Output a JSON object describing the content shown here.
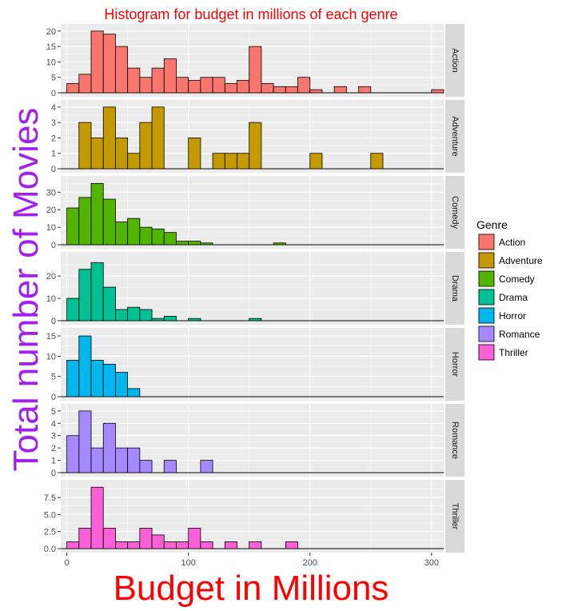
{
  "chart_data": {
    "type": "bar",
    "title": "Histogram for budget in millions of each genre",
    "xlabel": "Budget in Millions",
    "ylabel": "Total number of Movies",
    "title_color": "#FF0000",
    "xlabel_color": "#FF0000",
    "ylabel_color": "#A020F0",
    "binwidth": 10,
    "xlim": [
      -5,
      310
    ],
    "x_ticks": [
      0,
      100,
      200,
      300
    ],
    "x_tick_labels": [
      "0",
      "100",
      "200",
      "300"
    ],
    "grid": true,
    "legend": {
      "title": "Genre",
      "position": "right",
      "entries": [
        "Action",
        "Adventure",
        "Comedy",
        "Drama",
        "Horror",
        "Romance",
        "Thriller"
      ]
    },
    "bins_start": [
      0,
      10,
      20,
      30,
      40,
      50,
      60,
      70,
      80,
      90,
      100,
      110,
      120,
      130,
      140,
      150,
      160,
      170,
      180,
      190,
      200,
      210,
      220,
      230,
      240,
      250,
      260,
      270,
      280,
      290,
      300
    ],
    "series": [
      {
        "name": "Action",
        "color": "#F8766D",
        "ylim": [
          0,
          21
        ],
        "y_ticks": [
          0,
          5,
          10,
          15,
          20
        ],
        "y_tick_labels": [
          "0",
          "5",
          "10",
          "15",
          "20"
        ],
        "values": [
          3,
          6,
          20,
          19,
          15,
          8,
          5,
          8,
          11,
          5,
          4,
          5,
          5,
          3,
          4,
          15,
          3,
          2,
          2,
          5,
          1,
          0,
          2,
          0,
          2,
          0,
          0,
          0,
          0,
          0,
          1
        ]
      },
      {
        "name": "Adventure",
        "color": "#C49A00",
        "ylim": [
          0,
          4.2
        ],
        "y_ticks": [
          0,
          1,
          2,
          3,
          4
        ],
        "y_tick_labels": [
          "0",
          "1",
          "2",
          "3",
          "4"
        ],
        "values": [
          0,
          3,
          2,
          4,
          2,
          1,
          3,
          4,
          0,
          0,
          2,
          0,
          1,
          1,
          1,
          3,
          0,
          0,
          0,
          0,
          1,
          0,
          0,
          0,
          0,
          1,
          0,
          0,
          0,
          0,
          0
        ]
      },
      {
        "name": "Comedy",
        "color": "#53B400",
        "ylim": [
          0,
          37
        ],
        "y_ticks": [
          0,
          10,
          20,
          30
        ],
        "y_tick_labels": [
          "0",
          "10",
          "20",
          "30"
        ],
        "values": [
          21,
          27,
          35,
          26,
          13,
          15,
          10,
          9,
          7,
          2,
          2,
          1,
          0,
          0,
          0,
          0,
          0,
          1,
          0,
          0,
          0,
          0,
          0,
          0,
          0,
          0,
          0,
          0,
          0,
          0,
          0
        ]
      },
      {
        "name": "Drama",
        "color": "#00C094",
        "ylim": [
          0,
          29
        ],
        "y_ticks": [
          0,
          10,
          20
        ],
        "y_tick_labels": [
          "0",
          "10",
          "20"
        ],
        "values": [
          10,
          23,
          26,
          15,
          5,
          6,
          5,
          1,
          2,
          0,
          1,
          0,
          0,
          0,
          0,
          1,
          0,
          0,
          0,
          0,
          0,
          0,
          0,
          0,
          0,
          0,
          0,
          0,
          0,
          0,
          0
        ]
      },
      {
        "name": "Horror",
        "color": "#00B6EB",
        "ylim": [
          0,
          16
        ],
        "y_ticks": [
          0,
          5,
          10,
          15
        ],
        "y_tick_labels": [
          "0",
          "5",
          "10",
          "15"
        ],
        "values": [
          9,
          15,
          9,
          8,
          6,
          2,
          0,
          0,
          0,
          0,
          0,
          0,
          0,
          0,
          0,
          0,
          0,
          0,
          0,
          0,
          0,
          0,
          0,
          0,
          0,
          0,
          0,
          0,
          0,
          0,
          0
        ]
      },
      {
        "name": "Romance",
        "color": "#A58AFF",
        "ylim": [
          0,
          5.25
        ],
        "y_ticks": [
          0,
          1,
          2,
          3,
          4,
          5
        ],
        "y_tick_labels": [
          "0",
          "1",
          "2",
          "3",
          "4",
          "5"
        ],
        "values": [
          3,
          5,
          2,
          4,
          2,
          2,
          1,
          0,
          1,
          0,
          0,
          1,
          0,
          0,
          0,
          0,
          0,
          0,
          0,
          0,
          0,
          0,
          0,
          0,
          0,
          0,
          0,
          0,
          0,
          0,
          0
        ]
      },
      {
        "name": "Thriller",
        "color": "#FB61D7",
        "ylim": [
          0,
          9.5
        ],
        "y_ticks": [
          0,
          2.5,
          5,
          7.5
        ],
        "y_tick_labels": [
          "0.0",
          "2.5",
          "5.0",
          "7.5"
        ],
        "values": [
          1,
          3,
          9,
          3,
          1,
          1,
          3,
          2,
          1,
          1,
          3,
          1,
          0,
          1,
          0,
          1,
          0,
          0,
          1,
          0,
          0,
          0,
          0,
          0,
          0,
          0,
          0,
          0,
          0,
          0,
          0
        ]
      }
    ]
  }
}
